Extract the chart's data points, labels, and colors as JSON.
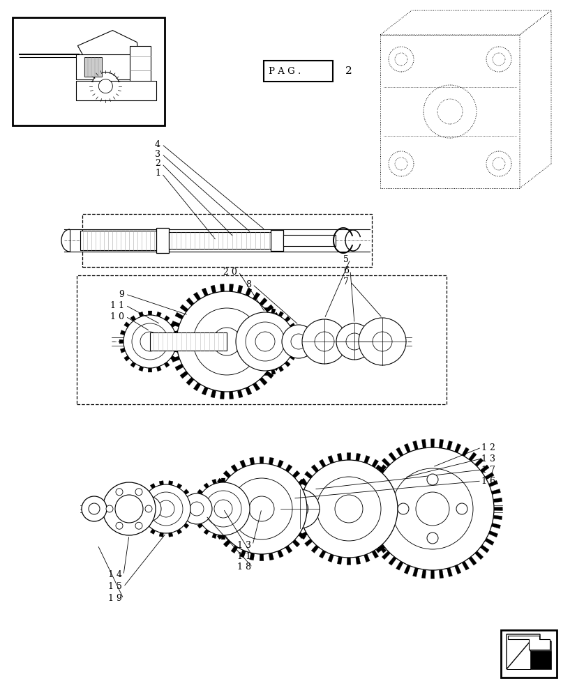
{
  "bg_color": "#ffffff",
  "lc": "#000000",
  "fig_width": 8.28,
  "fig_height": 10.0,
  "dpi": 100
}
